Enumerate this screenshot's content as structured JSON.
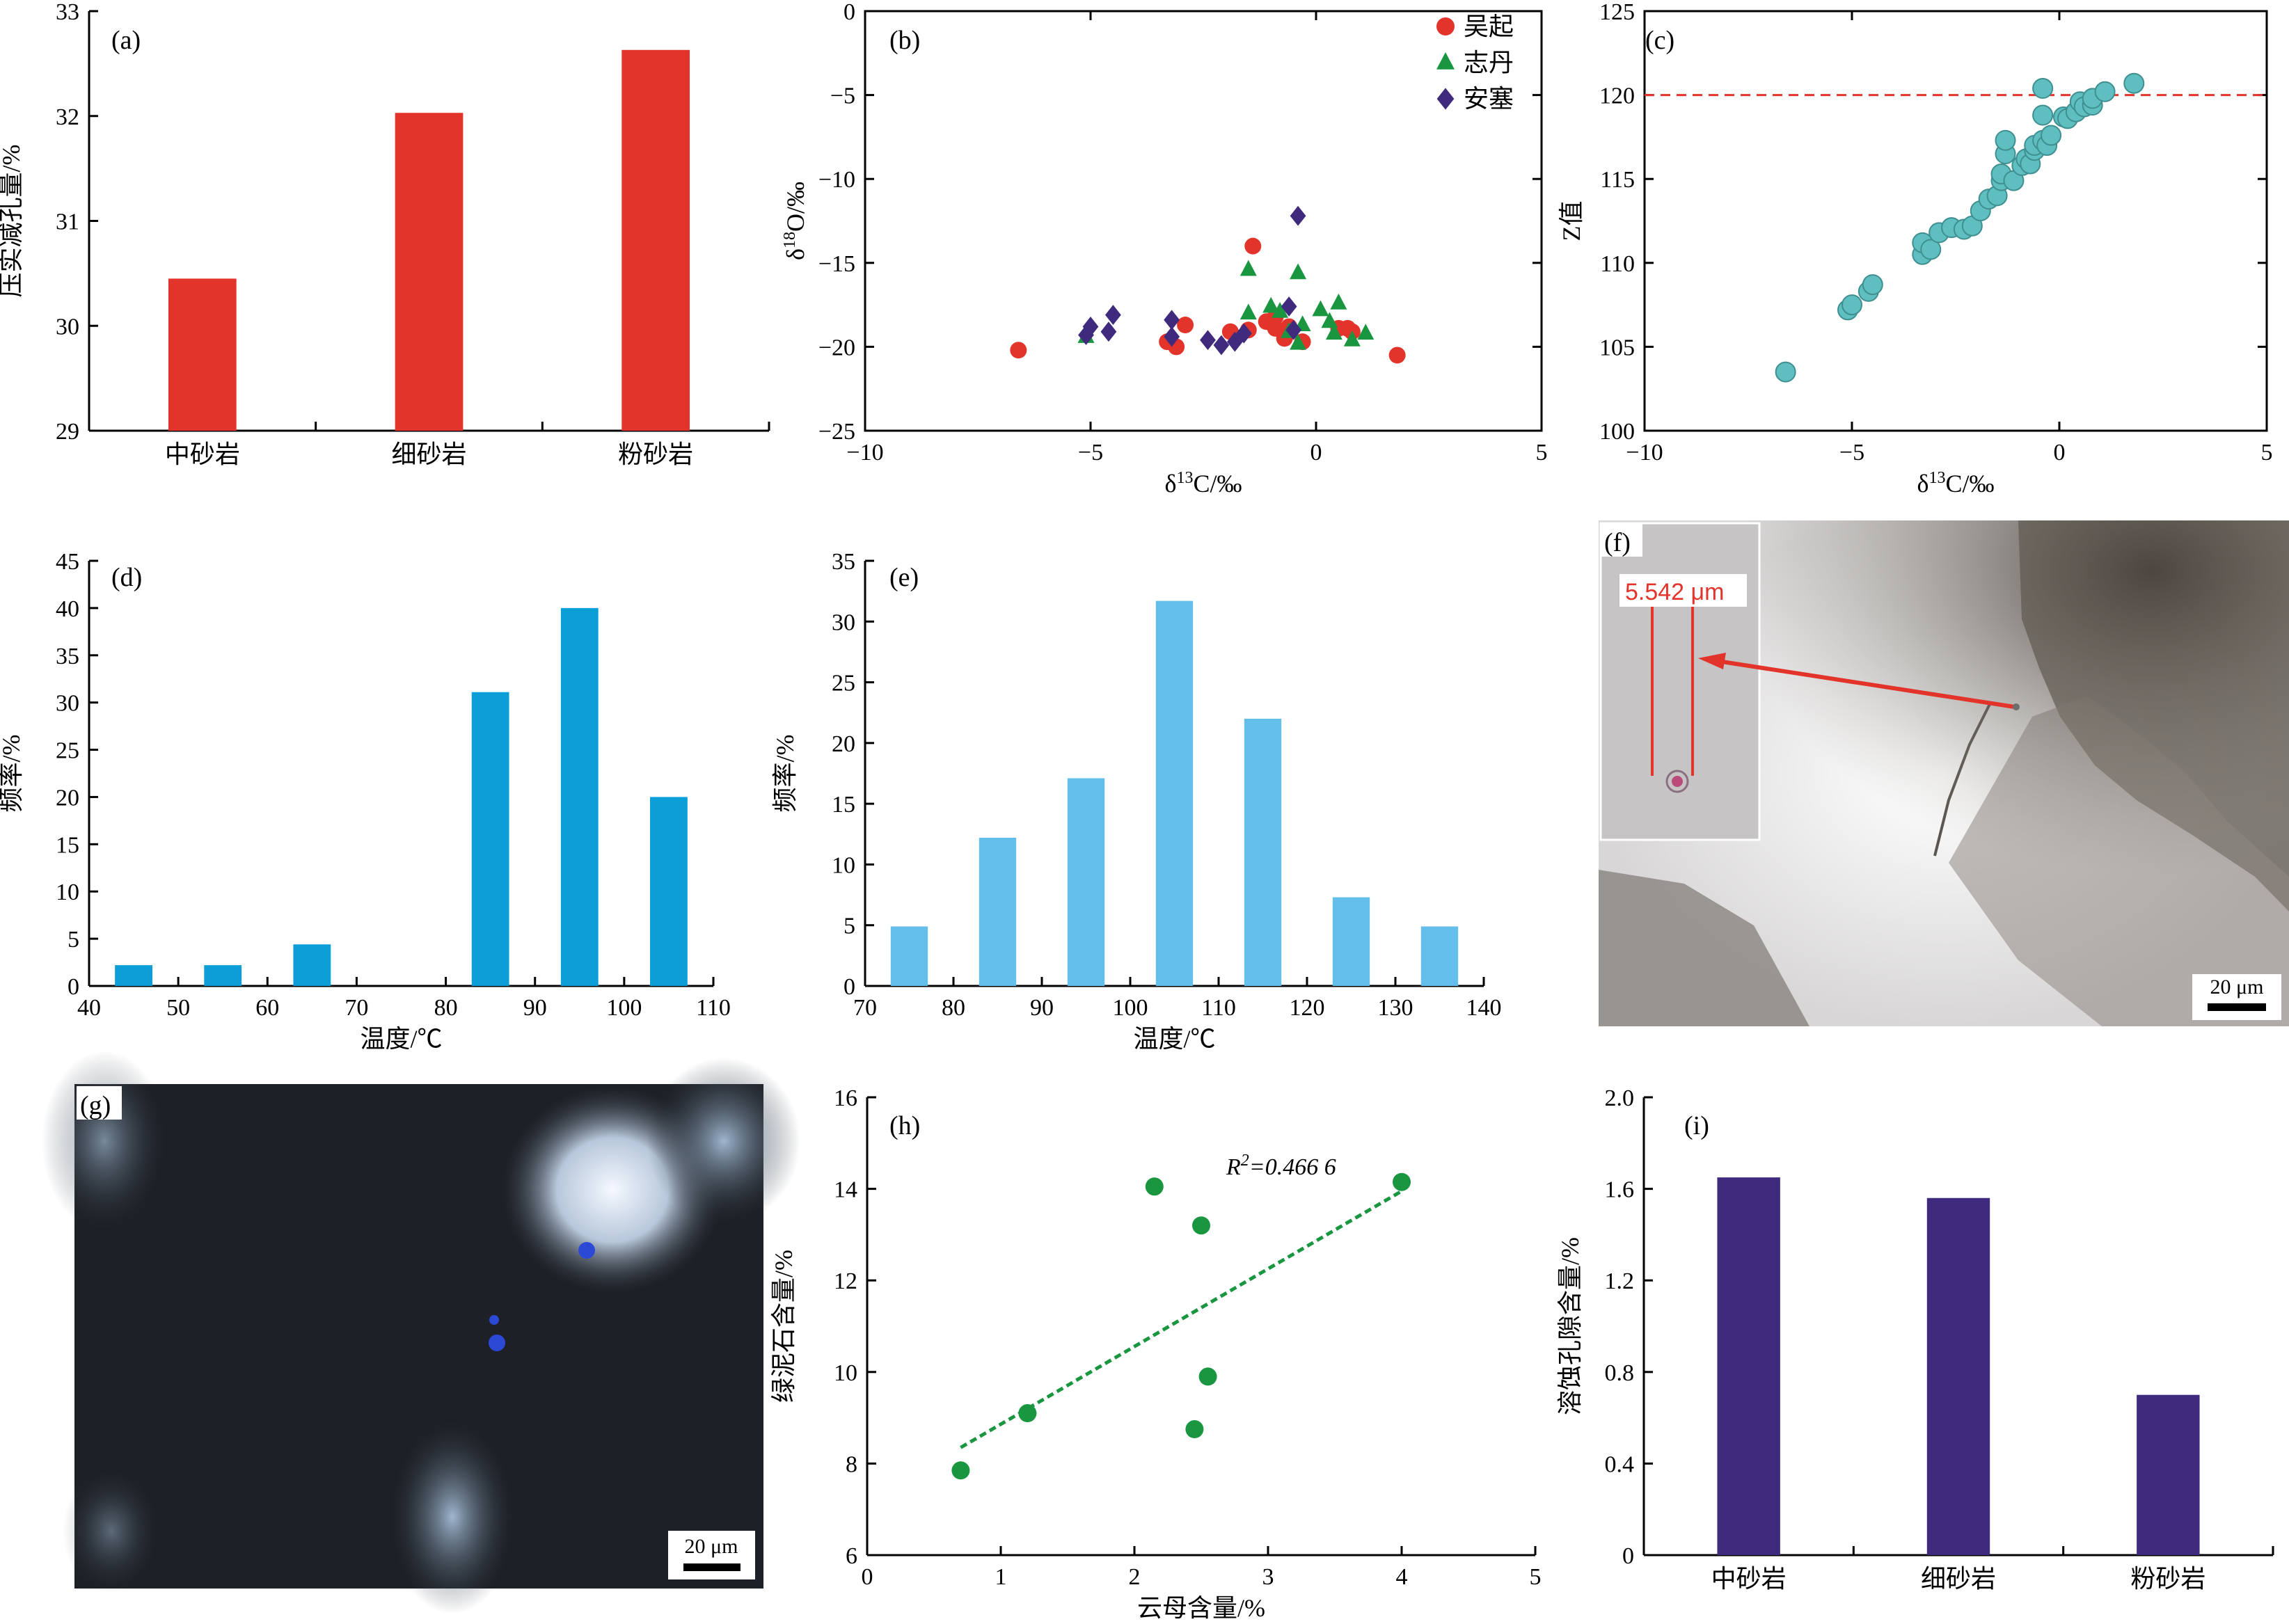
{
  "chart_data": [
    {
      "panel": "(a)",
      "type": "bar",
      "categories": [
        "中砂岩",
        "细砂岩",
        "粉砂岩"
      ],
      "values": [
        30.45,
        32.03,
        32.63
      ],
      "ylabel": "压实减孔量/%",
      "ylim": [
        29,
        33
      ],
      "yticks": [
        "29",
        "30",
        "31",
        "32",
        "33"
      ],
      "color": "#e3342b"
    },
    {
      "panel": "(b)",
      "type": "scatter",
      "xlabel": "δ¹³C/‰",
      "ylabel": "δ¹⁸O/‰",
      "xlim": [
        -10,
        5
      ],
      "ylim": [
        -25,
        0
      ],
      "xticks": [
        "−10",
        "−5",
        "0",
        "5"
      ],
      "yticks": [
        "−25",
        "−20",
        "−15",
        "−10",
        "−5",
        "0"
      ],
      "legend_position": "top-right",
      "series": [
        {
          "name": "吴起",
          "marker": "circle",
          "color": "#e3342b",
          "points": [
            [
              -6.6,
              -20.2
            ],
            [
              -3.3,
              -19.7
            ],
            [
              -3.1,
              -20.0
            ],
            [
              -2.9,
              -18.7
            ],
            [
              -1.9,
              -19.1
            ],
            [
              -1.5,
              -19.0
            ],
            [
              -1.4,
              -14.0
            ],
            [
              -1.1,
              -18.5
            ],
            [
              -0.9,
              -18.2
            ],
            [
              -0.9,
              -18.9
            ],
            [
              -0.7,
              -19.5
            ],
            [
              -0.6,
              -18.8
            ],
            [
              -0.3,
              -19.7
            ],
            [
              0.5,
              -18.9
            ],
            [
              0.7,
              -18.9
            ],
            [
              0.8,
              -19.1
            ],
            [
              1.8,
              -20.5
            ]
          ]
        },
        {
          "name": "志丹",
          "marker": "triangle",
          "color": "#1a9641",
          "points": [
            [
              -5.1,
              -19.4
            ],
            [
              -1.5,
              -18.0
            ],
            [
              -1.5,
              -15.4
            ],
            [
              -1.0,
              -17.6
            ],
            [
              -0.8,
              -17.9
            ],
            [
              -0.6,
              -19.1
            ],
            [
              -0.4,
              -15.6
            ],
            [
              -0.4,
              -19.8
            ],
            [
              -0.3,
              -18.7
            ],
            [
              0.1,
              -17.8
            ],
            [
              0.3,
              -18.5
            ],
            [
              0.4,
              -19.2
            ],
            [
              0.5,
              -17.4
            ],
            [
              0.8,
              -19.6
            ],
            [
              1.1,
              -19.2
            ]
          ]
        },
        {
          "name": "安塞",
          "marker": "diamond",
          "color": "#3f2a7e",
          "points": [
            [
              -5.1,
              -19.3
            ],
            [
              -5.0,
              -18.8
            ],
            [
              -4.6,
              -19.1
            ],
            [
              -4.5,
              -18.1
            ],
            [
              -3.2,
              -18.4
            ],
            [
              -3.2,
              -19.4
            ],
            [
              -2.4,
              -19.6
            ],
            [
              -2.1,
              -19.9
            ],
            [
              -1.8,
              -19.7
            ],
            [
              -1.6,
              -19.2
            ],
            [
              -0.6,
              -17.6
            ],
            [
              -0.5,
              -19.0
            ],
            [
              -0.4,
              -12.2
            ]
          ]
        }
      ]
    },
    {
      "panel": "(c)",
      "type": "scatter",
      "xlabel": "δ¹³C/‰",
      "ylabel": "Z值",
      "xlim": [
        -10,
        5
      ],
      "ylim": [
        100,
        125
      ],
      "xticks": [
        "−10",
        "−5",
        "0",
        "5"
      ],
      "yticks": [
        "100",
        "105",
        "110",
        "115",
        "120",
        "125"
      ],
      "reference_line": {
        "y": 120,
        "color": "#e3342b",
        "style": "dashed"
      },
      "color": "#5fbfc0",
      "points": [
        [
          -6.6,
          103.5
        ],
        [
          -5.1,
          107.2
        ],
        [
          -5.0,
          107.5
        ],
        [
          -4.6,
          108.3
        ],
        [
          -4.5,
          108.7
        ],
        [
          -3.3,
          110.5
        ],
        [
          -3.3,
          111.2
        ],
        [
          -3.1,
          110.8
        ],
        [
          -2.9,
          111.8
        ],
        [
          -2.6,
          112.1
        ],
        [
          -2.3,
          112.0
        ],
        [
          -2.1,
          112.2
        ],
        [
          -1.9,
          113.1
        ],
        [
          -1.7,
          113.8
        ],
        [
          -1.5,
          114.0
        ],
        [
          -1.4,
          114.9
        ],
        [
          -1.4,
          115.3
        ],
        [
          -1.3,
          116.5
        ],
        [
          -1.3,
          117.3
        ],
        [
          -1.1,
          114.9
        ],
        [
          -0.9,
          115.8
        ],
        [
          -0.8,
          116.2
        ],
        [
          -0.7,
          115.9
        ],
        [
          -0.6,
          116.7
        ],
        [
          -0.6,
          117.0
        ],
        [
          -0.4,
          117.3
        ],
        [
          -0.3,
          117.0
        ],
        [
          -0.4,
          118.8
        ],
        [
          -0.4,
          120.4
        ],
        [
          -0.2,
          117.6
        ],
        [
          0.1,
          118.7
        ],
        [
          0.2,
          118.6
        ],
        [
          0.4,
          119.0
        ],
        [
          0.5,
          119.6
        ],
        [
          0.6,
          119.3
        ],
        [
          0.8,
          119.4
        ],
        [
          0.8,
          119.8
        ],
        [
          1.1,
          120.2
        ],
        [
          1.8,
          120.7
        ]
      ]
    },
    {
      "panel": "(d)",
      "type": "bar",
      "xlabel": "温度/℃",
      "ylabel": "频率/%",
      "xlim": [
        40,
        110
      ],
      "ylim": [
        0,
        45
      ],
      "xticks": [
        "40",
        "50",
        "60",
        "70",
        "80",
        "90",
        "100",
        "110"
      ],
      "yticks": [
        "0",
        "5",
        "10",
        "15",
        "20",
        "25",
        "30",
        "35",
        "40",
        "45"
      ],
      "bin_centers": [
        45,
        55,
        65,
        75,
        85,
        95,
        105
      ],
      "values": [
        2.2,
        2.2,
        4.4,
        0,
        31.1,
        40.0,
        20.0
      ],
      "color": "#0c9ed6"
    },
    {
      "panel": "(e)",
      "type": "bar",
      "xlabel": "温度/℃",
      "ylabel": "频率/%",
      "xlim": [
        70,
        140
      ],
      "ylim": [
        0,
        35
      ],
      "xticks": [
        "70",
        "80",
        "90",
        "100",
        "110",
        "120",
        "130",
        "140"
      ],
      "yticks": [
        "0",
        "5",
        "10",
        "15",
        "20",
        "25",
        "30",
        "35"
      ],
      "bin_centers": [
        75,
        85,
        95,
        105,
        115,
        125,
        135
      ],
      "values": [
        4.9,
        12.2,
        17.1,
        31.7,
        22.0,
        7.3,
        4.9
      ],
      "color": "#63bfe9"
    },
    {
      "panel": "(h)",
      "type": "scatter",
      "xlabel": "云母含量/%",
      "ylabel": "绿泥石含量/%",
      "xlim": [
        0,
        5
      ],
      "ylim": [
        6,
        16
      ],
      "xticks": [
        "0",
        "1",
        "2",
        "3",
        "4",
        "5"
      ],
      "yticks": [
        "6",
        "8",
        "10",
        "12",
        "14",
        "16"
      ],
      "annotation": "R²=0.466 6",
      "trendline": {
        "x": [
          0.7,
          4.0
        ],
        "y": [
          8.35,
          13.95
        ]
      },
      "color": "#1a9641",
      "points": [
        [
          0.7,
          7.85
        ],
        [
          1.2,
          9.1
        ],
        [
          2.15,
          14.05
        ],
        [
          2.5,
          13.2
        ],
        [
          2.55,
          9.9
        ],
        [
          2.45,
          8.75
        ],
        [
          4.0,
          14.15
        ]
      ]
    },
    {
      "panel": "(i)",
      "type": "bar",
      "categories": [
        "中砂岩",
        "细砂岩",
        "粉砂岩"
      ],
      "values": [
        1.65,
        1.56,
        0.7
      ],
      "ylabel": "溶蚀孔隙含量/%",
      "ylim": [
        0,
        2.0
      ],
      "yticks": [
        "0",
        "0.4",
        "0.8",
        "1.2",
        "1.6",
        "2.0"
      ],
      "color": "#3f2a7e"
    }
  ],
  "photos": {
    "f": {
      "tag": "(f)",
      "scale_bar": "20 μm",
      "measurement": "5.542 μm"
    },
    "g": {
      "tag": "(g)",
      "scale_bar": "20 μm"
    }
  }
}
